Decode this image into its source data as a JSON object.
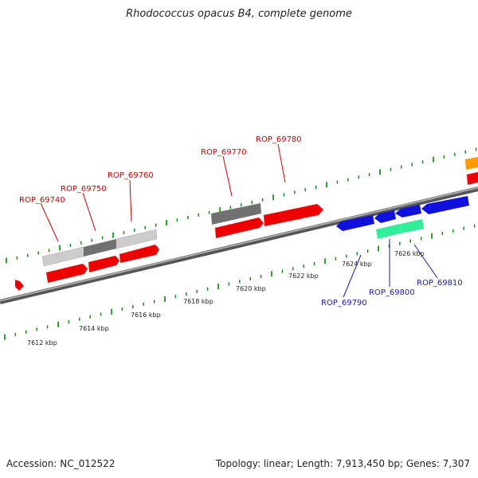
{
  "title": "Rhodococcus opacus B4, complete genome",
  "footer": {
    "accession": "Accession: NC_012522",
    "summary": "Topology: linear; Length: 7,913,450 bp; Genes: 7,307"
  },
  "colors": {
    "forward_label": "#cc0000",
    "reverse_label": "#1a1aaa",
    "cds_forward": "#ff0000",
    "cds_reverse": "#0000ee",
    "rna": "#33ee99",
    "other": "#ff9900",
    "backbone": "#888888",
    "ticks": "#008800"
  },
  "scale": {
    "labels": [
      "7612 kbp",
      "7614 kbp",
      "7616 kbp",
      "7618 kbp",
      "7620 kbp",
      "7622 kbp",
      "7624 kbp",
      "7626 kbp"
    ]
  },
  "genes": [
    {
      "name": "ROP_69740",
      "strand": "forward"
    },
    {
      "name": "ROP_69750",
      "strand": "forward"
    },
    {
      "name": "ROP_69760",
      "strand": "forward"
    },
    {
      "name": "ROP_69770",
      "strand": "forward"
    },
    {
      "name": "ROP_69780",
      "strand": "forward"
    },
    {
      "name": "ROP_69790",
      "strand": "reverse"
    },
    {
      "name": "ROP_69800",
      "strand": "reverse"
    },
    {
      "name": "ROP_69810",
      "strand": "reverse"
    }
  ]
}
